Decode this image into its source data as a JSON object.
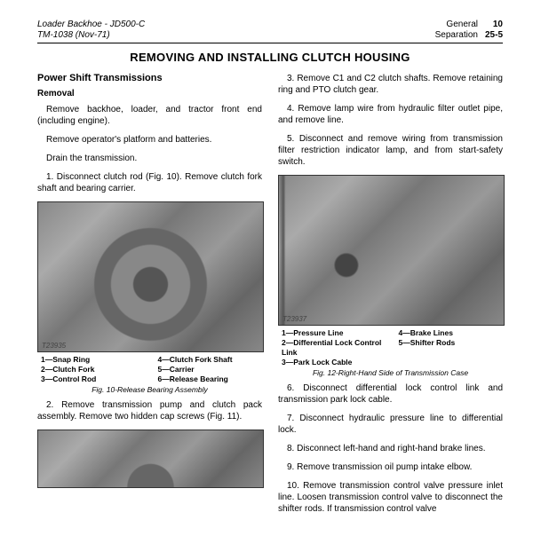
{
  "header": {
    "left1": "Loader Backhoe - JD500-C",
    "left2": "TM-1038   (Nov-71)",
    "right1": "General",
    "right1n": "10",
    "right2": "Separation",
    "right2n": "25-5"
  },
  "title": "REMOVING AND INSTALLING CLUTCH HOUSING",
  "left": {
    "h2": "Power Shift Transmissions",
    "h3": "Removal",
    "p1": "Remove backhoe, loader, and tractor front end (including engine).",
    "p2": "Remove operator's platform and batteries.",
    "p3": "Drain the transmission.",
    "p4": "1. Disconnect clutch rod (Fig. 10). Remove clutch fork shaft and bearing carrier.",
    "legendL": "1—Snap Ring\n2—Clutch Fork\n3—Control Rod",
    "legendR": "4—Clutch Fork Shaft\n5—Carrier\n6—Release Bearing",
    "cap1": "Fig. 10-Release Bearing Assembly",
    "p5": "2. Remove transmission pump and clutch pack assembly. Remove two hidden cap screws (Fig. 11).",
    "imgnum1": "T23935"
  },
  "right": {
    "p1": "3. Remove C1 and C2 clutch shafts. Remove retaining ring and PTO clutch gear.",
    "p2": "4. Remove lamp wire from hydraulic filter outlet pipe, and remove line.",
    "p3": "5. Disconnect and remove wiring from transmission filter restriction indicator lamp, and from start-safety switch.",
    "legendL": "1—Pressure Line\n2—Differential Lock Control Link\n3—Park Lock Cable",
    "legendR": "4—Brake Lines\n5—Shifter Rods",
    "cap1": "Fig. 12-Right-Hand Side of Transmission Case",
    "p4": "6. Disconnect differential lock control link and transmission park lock cable.",
    "p5": "7. Disconnect hydraulic pressure line to differential lock.",
    "p6": "8. Disconnect left-hand and right-hand brake lines.",
    "p7": "9. Remove transmission oil pump intake elbow.",
    "p8": "10. Remove transmission control valve pressure inlet line. Loosen transmission control valve to disconnect the shifter rods. If transmission control valve",
    "imgnum1": "T23937"
  }
}
